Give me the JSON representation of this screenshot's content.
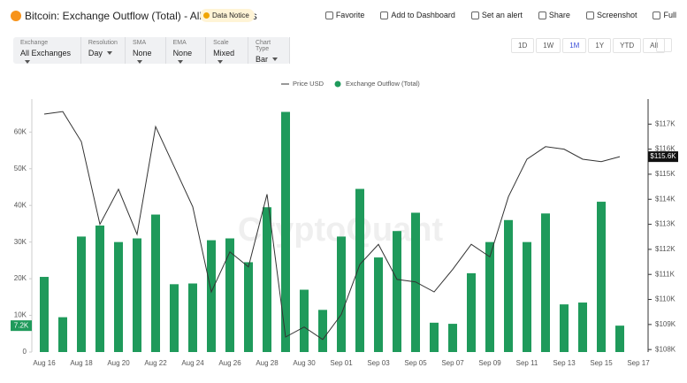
{
  "header": {
    "title": "Bitcoin: Exchange Outflow (Total) - All Exchanges",
    "badge": "Data Notice",
    "actions": [
      "Favorite",
      "Add to Dashboard",
      "Set an alert",
      "Share",
      "Screenshot",
      "Full"
    ]
  },
  "controls": [
    {
      "label": "Exchange",
      "value": "All Exchanges"
    },
    {
      "label": "Resolution",
      "value": "Day"
    },
    {
      "label": "SMA",
      "value": "None"
    },
    {
      "label": "EMA",
      "value": "None"
    },
    {
      "label": "Scale",
      "value": "Mixed"
    },
    {
      "label": "Chart Type",
      "value": "Bar"
    }
  ],
  "ranges": [
    "1D",
    "1W",
    "1M",
    "1Y",
    "YTD",
    "All"
  ],
  "active_range": "1M",
  "chart_data": {
    "type": "bar",
    "watermark": "CryptoQuant",
    "categories": [
      "Aug 16",
      null,
      "Aug 18",
      null,
      "Aug 20",
      null,
      "Aug 22",
      null,
      "Aug 24",
      null,
      "Aug 26",
      null,
      "Aug 28",
      null,
      "Aug 30",
      null,
      "Sep 01",
      null,
      "Sep 03",
      null,
      "Sep 05",
      null,
      "Sep 07",
      null,
      "Sep 09",
      null,
      "Sep 11",
      null,
      "Sep 13",
      null,
      "Sep 15",
      null,
      "Sep 17"
    ],
    "series": [
      {
        "name": "Price USD",
        "type": "line",
        "axis": "y2",
        "color": "#333333",
        "values": [
          117400,
          117500,
          116300,
          113000,
          114400,
          112600,
          116900,
          115300,
          113700,
          110300,
          111900,
          111300,
          114200,
          108500,
          108900,
          108400,
          109400,
          111400,
          112200,
          110800,
          110700,
          110300,
          111200,
          112200,
          111700,
          114100,
          115600,
          116100,
          116000,
          115600,
          115500,
          115700,
          null
        ],
        "last_label": "$115.6K"
      },
      {
        "name": "Exchange Outflow (Total)",
        "type": "bar",
        "color": "#1f9a5b",
        "values": [
          20500,
          9500,
          31500,
          34500,
          30000,
          31000,
          37500,
          18500,
          18700,
          30500,
          31000,
          24500,
          39500,
          65500,
          17000,
          11500,
          31500,
          44500,
          25800,
          33000,
          38000,
          8000,
          7700,
          21500,
          30000,
          36000,
          30000,
          37800,
          13000,
          13500,
          41000,
          7200,
          null
        ],
        "last_label": "7.2K"
      }
    ],
    "ylim": [
      0,
      69000
    ],
    "yticks": [
      0,
      {
        "value": 10000,
        "label": "10K"
      },
      {
        "value": 20000,
        "label": "20K"
      },
      {
        "value": 30000,
        "label": "30K"
      },
      {
        "value": 40000,
        "label": "40K"
      },
      {
        "value": 50000,
        "label": "50K"
      },
      {
        "value": 60000,
        "label": "60K"
      }
    ],
    "y2lim": [
      107900,
      118000
    ],
    "y2ticks": [
      {
        "value": 108000,
        "label": "$108K"
      },
      {
        "value": 109000,
        "label": "$109K"
      },
      {
        "value": 110000,
        "label": "$110K"
      },
      {
        "value": 111000,
        "label": "$111K"
      },
      {
        "value": 112000,
        "label": "$112K"
      },
      {
        "value": 113000,
        "label": "$113K"
      },
      {
        "value": 114000,
        "label": "$114K"
      },
      {
        "value": 115000,
        "label": "$115K"
      },
      {
        "value": 116000,
        "label": "$116K"
      },
      {
        "value": 117000,
        "label": "$117K"
      }
    ]
  }
}
